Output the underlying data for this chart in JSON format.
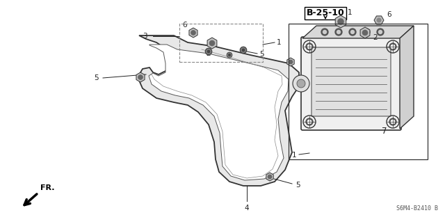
{
  "bg_color": "#ffffff",
  "part_ref": "B-25-10",
  "part_code": "S6M4-B2410 B",
  "fr_label": "FR.",
  "figsize": [
    6.4,
    3.19
  ],
  "dpi": 100,
  "line_color": "#222222",
  "line_width": 0.9,
  "label_fontsize": 7.5,
  "ref_fontsize": 8.5
}
